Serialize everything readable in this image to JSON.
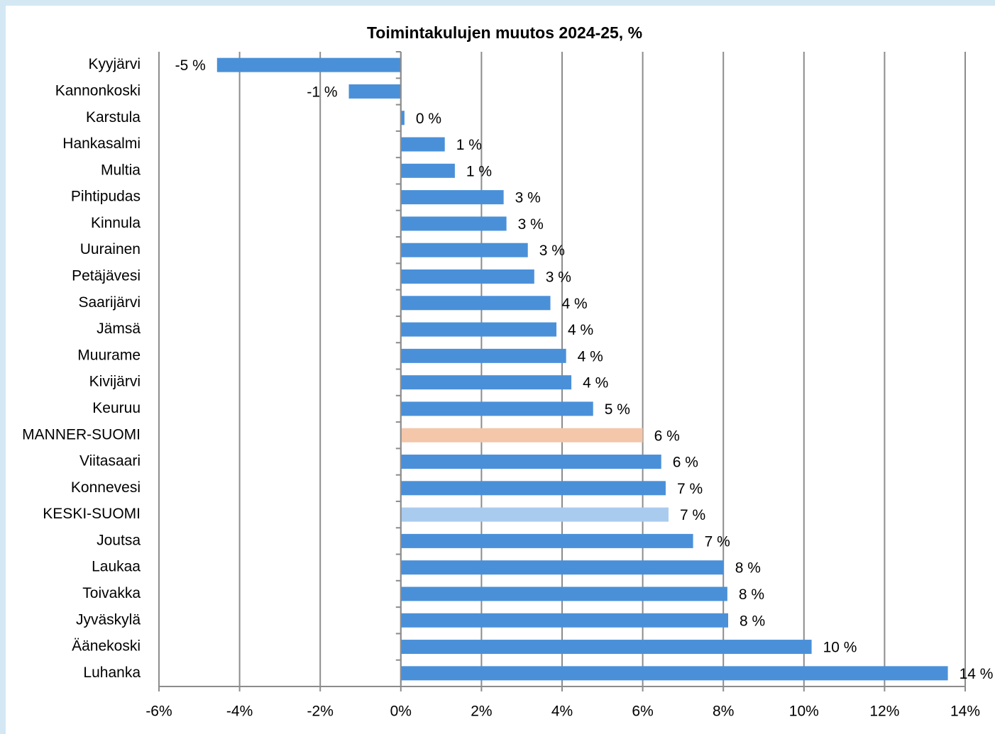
{
  "chart_data": {
    "type": "bar",
    "orientation": "horizontal",
    "title": "Toimintakulujen muutos 2024-25, %",
    "categories": [
      "Kyyjärvi",
      "Kannonkoski",
      "Karstula",
      "Hankasalmi",
      "Multia",
      "Pihtipudas",
      "Kinnula",
      "Uurainen",
      "Petäjävesi",
      "Saarijärvi",
      "Jämsä",
      "Muurame",
      "Kivijärvi",
      "Keuruu",
      "MANNER-SUOMI",
      "Viitasaari",
      "Konnevesi",
      "KESKI-SUOMI",
      "Joutsa",
      "Laukaa",
      "Toivakka",
      "Jyväskylä",
      "Äänekoski",
      "Luhanka"
    ],
    "values": [
      -4.56,
      -1.29,
      0.09,
      1.09,
      1.34,
      2.55,
      2.62,
      3.15,
      3.31,
      3.71,
      3.86,
      4.1,
      4.23,
      4.77,
      6.0,
      6.46,
      6.57,
      6.64,
      7.25,
      8.01,
      8.1,
      8.12,
      10.19,
      13.57
    ],
    "value_labels": [
      "-5 %",
      "-1 %",
      "0 %",
      "1 %",
      "1 %",
      "3 %",
      "3 %",
      "3 %",
      "3 %",
      "4 %",
      "4 %",
      "4 %",
      "4 %",
      "5 %",
      "6 %",
      "6 %",
      "7 %",
      "7 %",
      "7 %",
      "8 %",
      "8 %",
      "8 %",
      "10 %",
      "14 %"
    ],
    "colors": [
      "#4a90d9",
      "#4a90d9",
      "#4a90d9",
      "#4a90d9",
      "#4a90d9",
      "#4a90d9",
      "#4a90d9",
      "#4a90d9",
      "#4a90d9",
      "#4a90d9",
      "#4a90d9",
      "#4a90d9",
      "#4a90d9",
      "#4a90d9",
      "#f4c6aa",
      "#4a90d9",
      "#4a90d9",
      "#a9cbee",
      "#4a90d9",
      "#4a90d9",
      "#4a90d9",
      "#4a90d9",
      "#4a90d9",
      "#4a90d9"
    ],
    "xlim": [
      -6,
      14
    ],
    "xticks": [
      {
        "value": -6,
        "label": "-6%"
      },
      {
        "value": -4,
        "label": "-4%"
      },
      {
        "value": -2,
        "label": "-2%"
      },
      {
        "value": 0,
        "label": "0%"
      },
      {
        "value": 2,
        "label": "2%"
      },
      {
        "value": 4,
        "label": "4%"
      },
      {
        "value": 6,
        "label": "6%"
      },
      {
        "value": 8,
        "label": "8%"
      },
      {
        "value": 10,
        "label": "10%"
      },
      {
        "value": 12,
        "label": "12%"
      },
      {
        "value": 14,
        "label": "14%"
      }
    ],
    "grid": true
  }
}
